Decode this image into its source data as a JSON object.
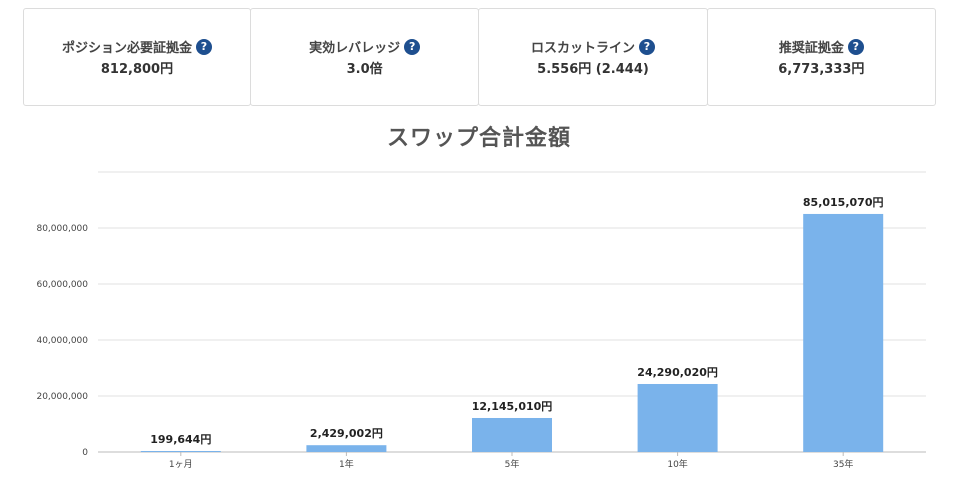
{
  "cards": [
    {
      "label": "ポジション必要証拠金",
      "value": "812,800円",
      "help_icon": "question-circle-icon"
    },
    {
      "label": "実効レバレッジ",
      "value": "3.0倍",
      "help_icon": "question-circle-icon"
    },
    {
      "label": "ロスカットライン",
      "value": "5.556円 (2.444)",
      "help_icon": "question-circle-icon"
    },
    {
      "label": "推奨証拠金",
      "value": "6,773,333円",
      "help_icon": "question-circle-icon"
    }
  ],
  "help_glyph": "?",
  "colors": {
    "bar": "#7ab3eb",
    "help": "#1e4f8f",
    "grid": "#e0e0e0"
  },
  "chart_data": {
    "type": "bar",
    "title": "スワップ合計金額",
    "categories": [
      "1ヶ月",
      "1年",
      "5年",
      "10年",
      "35年"
    ],
    "values": [
      199644,
      2429002,
      12145010,
      24290020,
      85015070
    ],
    "value_labels": [
      "199,644円",
      "2,429,002円",
      "12,145,010円",
      "24,290,020円",
      "85,015,070円"
    ],
    "y_ticks": [
      "0",
      "20,000,000",
      "40,000,000",
      "60,000,000",
      "80,000,000"
    ],
    "y_tick_values": [
      0,
      20000000,
      40000000,
      60000000,
      80000000
    ],
    "ylim": [
      0,
      100000000
    ],
    "grid": true
  }
}
